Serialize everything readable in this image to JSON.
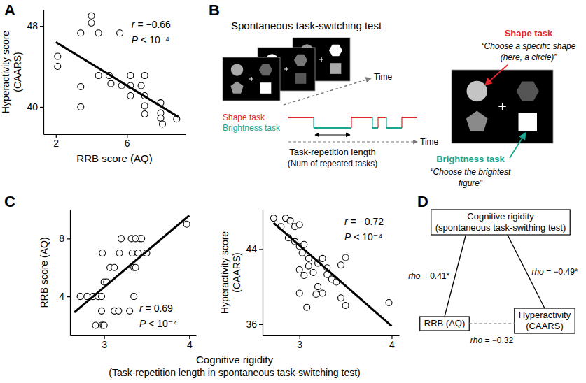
{
  "chart_data": [
    {
      "type": "scatter",
      "title": "A",
      "x_label": [
        "RRB score (AQ)"
      ],
      "y_label": [
        "Hyperactivity score",
        "(CAARS)"
      ],
      "xlim": [
        1.3,
        9.3
      ],
      "ylim": [
        37.3,
        49.6
      ],
      "xticks": [
        2,
        6
      ],
      "yticks": [
        40,
        48
      ],
      "series": [
        {
          "type": "scatter",
          "marker": "circle",
          "x": [
            2.1,
            2.1,
            3.4,
            3.4,
            3.4,
            4.0,
            4.0,
            4.4,
            4.4,
            5.0,
            5.1,
            5.6,
            5.7,
            6.2,
            6.2,
            6.2,
            6.8,
            7.0,
            7.0,
            7.0,
            7.0,
            7.9,
            7.9,
            7.9,
            8.0,
            8.8
          ],
          "values": [
            45.0,
            44.0,
            47.3,
            42.0,
            40.0,
            49.0,
            48.3,
            47.3,
            43.1,
            43.1,
            42.3,
            47.3,
            42.1,
            43.1,
            42.1,
            41.1,
            42.1,
            43.1,
            41.1,
            40.1,
            39.3,
            40.4,
            39.4,
            38.9,
            38.3,
            38.8
          ]
        },
        {
          "type": "line",
          "line_style": "solid",
          "x": [
            2.0,
            8.9
          ],
          "values": [
            46.4,
            39.0
          ]
        }
      ],
      "annotations": [
        "r = −0.66",
        "P < 10⁻⁴"
      ]
    },
    {
      "type": "scatter",
      "title": "C",
      "x_label": [
        "Cognitive rigidity",
        "(Task-repetition length in spontaneous task-switching test)"
      ],
      "y_label": [
        "RRB score (AQ)"
      ],
      "xlim": [
        2.6,
        4.08
      ],
      "ylim": [
        1.3,
        10
      ],
      "xticks": [
        3,
        4
      ],
      "yticks": [
        4,
        8
      ],
      "series": [
        {
          "type": "scatter",
          "marker": "circle",
          "x": [
            2.72,
            2.8,
            2.87,
            2.93,
            2.97,
            2.9,
            2.97,
            2.99,
            3.0,
            2.97,
            3.12,
            3.17,
            3.3,
            3.0,
            3.03,
            3.07,
            3.12,
            3.35,
            3.37,
            2.98,
            3.18,
            3.33,
            3.4,
            3.5,
            3.2,
            3.32,
            3.37,
            3.42,
            3.44,
            3.97,
            3.35
          ],
          "values": [
            4,
            4,
            4,
            4,
            4,
            2,
            2,
            2,
            2,
            3,
            3,
            3,
            3,
            5,
            5,
            6,
            6,
            6,
            6,
            7,
            7,
            7,
            7,
            7,
            8,
            8,
            8,
            8,
            8,
            9,
            4
          ]
        },
        {
          "type": "line",
          "line_style": "solid",
          "x": [
            2.65,
            4.0
          ],
          "values": [
            2.9,
            9.6
          ]
        }
      ],
      "annotations": [
        "r = 0.69",
        "P < 10⁻⁴"
      ]
    },
    {
      "type": "scatter",
      "y_label": [
        "Hyperactivity score",
        "(CAARS)"
      ],
      "xlim": [
        2.6,
        4.08
      ],
      "ylim": [
        34.8,
        48.2
      ],
      "xticks": [
        3,
        4
      ],
      "yticks": [
        36,
        44
      ],
      "series": [
        {
          "type": "scatter",
          "marker": "circle",
          "x": [
            2.72,
            2.8,
            2.85,
            2.9,
            2.95,
            3.0,
            2.88,
            2.95,
            3.0,
            3.03,
            3.05,
            3.1,
            3.0,
            3.05,
            3.1,
            3.15,
            3.2,
            3.25,
            3.3,
            3.3,
            3.35,
            3.2,
            3.25,
            3.4,
            3.45,
            3.5,
            3.18,
            3.0,
            3.08,
            3.5,
            3.97,
            3.45
          ],
          "values": [
            47.3,
            46.4,
            47.3,
            47.0,
            46.4,
            46.6,
            45.2,
            44.8,
            44.3,
            43.6,
            44.5,
            43.0,
            41.8,
            41.2,
            42.2,
            41.5,
            42.5,
            43.0,
            42.0,
            41.3,
            40.8,
            40.0,
            39.3,
            40.5,
            38.8,
            43.1,
            39.2,
            39.3,
            37.8,
            38.0,
            38.3,
            42.3
          ]
        },
        {
          "type": "line",
          "line_style": "solid",
          "x": [
            2.72,
            4.0
          ],
          "values": [
            46.8,
            35.8
          ]
        }
      ],
      "annotations": [
        "r = −0.72",
        "P < 10⁻⁴"
      ]
    }
  ],
  "task_switching_test": {
    "label": "B",
    "title": "Spontaneous task-switching test",
    "screen_axis_label": "Time",
    "timeline": {
      "shape_task": "Shape task",
      "brightness_task": "Brightness task",
      "axis_label": "Time",
      "measure": [
        "Task-repetition length",
        "(Num of repeated tasks)"
      ]
    },
    "example": {
      "shape_task": "Shape task",
      "shape_instruction": [
        "“Choose a specific shape",
        "(here, a circle)”"
      ],
      "brightness_task": "Brightness task",
      "brightness_instruction": [
        "“Choose the brightest",
        "figure”"
      ]
    }
  },
  "correlation_diagram": {
    "label": "D",
    "nodes": [
      {
        "label": [
          "Cognitive rigidity",
          "(spontaneous task-swithing test)"
        ]
      },
      {
        "label": [
          "RRB (AQ)"
        ]
      },
      {
        "label": [
          "Hyperactivity",
          "(CAARS)"
        ]
      }
    ],
    "edges": [
      {
        "from": 0,
        "to": 1,
        "label": "rho = 0.41*",
        "line_style": "solid"
      },
      {
        "from": 0,
        "to": 2,
        "label": "rho = −0.49*",
        "line_style": "solid"
      },
      {
        "from": 1,
        "to": 2,
        "label": "rho = −0.32",
        "line_style": "dashed"
      }
    ]
  }
}
